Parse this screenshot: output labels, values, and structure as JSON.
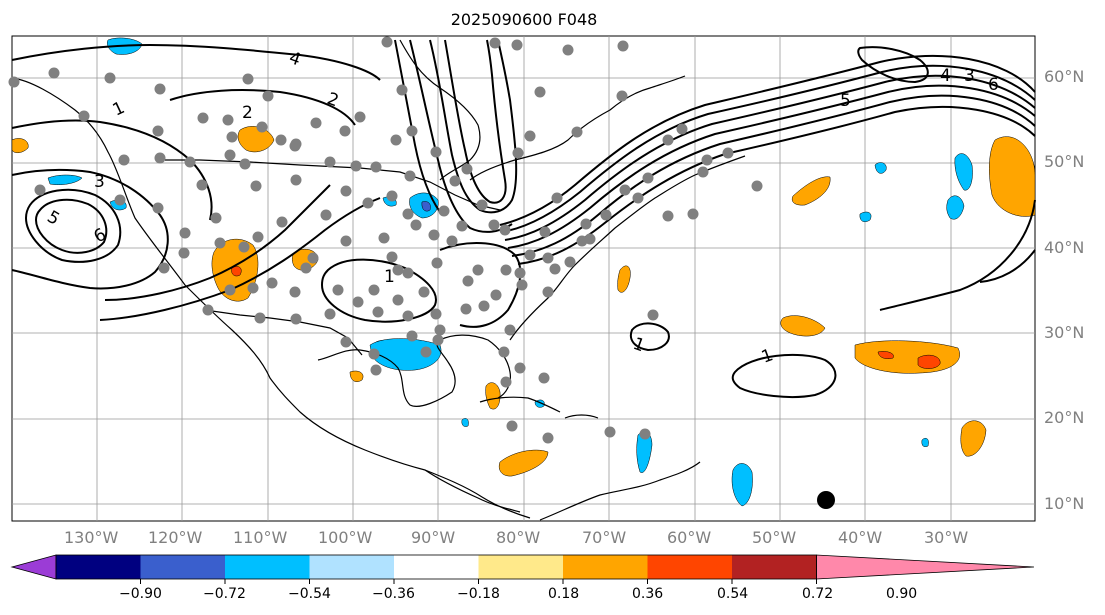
{
  "title": "2025090600 F048",
  "lon_labels": [
    "130°W",
    "120°W",
    "110°W",
    "100°W",
    "90°W",
    "80°W",
    "70°W",
    "60°W",
    "50°W",
    "40°W",
    "30°W"
  ],
  "lat_labels": [
    "60°N",
    "50°N",
    "40°N",
    "30°N",
    "20°N",
    "10°N"
  ],
  "colorbar": {
    "tick_labels": [
      "−0.90",
      "−0.72",
      "−0.54",
      "−0.36",
      "−0.18",
      "0.18",
      "0.36",
      "0.54",
      "0.72",
      "0.90"
    ],
    "colors": [
      "#9b3cd6",
      "#000080",
      "#3a5fcd",
      "#00bfff",
      "#b0e2ff",
      "#ffffff",
      "#ffe98a",
      "#ffa500",
      "#ff4500",
      "#b22222",
      "#ff88aa"
    ]
  },
  "contour_labels": [
    "1",
    "2",
    "3",
    "4",
    "5",
    "6",
    "1",
    "1",
    "1",
    "2",
    "3",
    "4",
    "5",
    "6"
  ],
  "colors": {
    "contour": "#000000",
    "station": "#808080",
    "grid": "#999999",
    "positive_anomaly": "#ffa500",
    "positive_strong": "#ff4500",
    "negative_anomaly": "#00bfff",
    "negative_strong": "#3a5fcd"
  }
}
